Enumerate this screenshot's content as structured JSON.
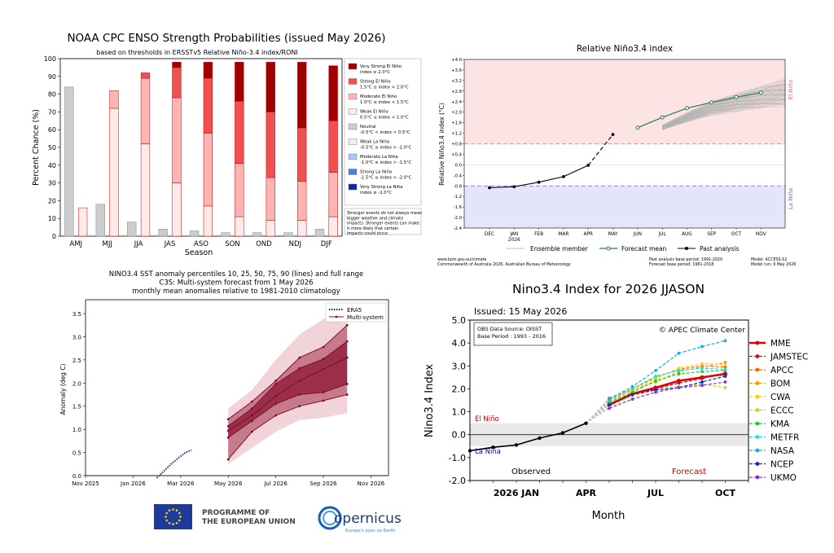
{
  "chart_data": [
    {
      "type": "bar",
      "title": "NOAA CPC ENSO Strength Probabilities (issued May 2026)",
      "subtitle": "based on thresholds in ERSSTv5 Relative Niño-3.4 index/RONI",
      "xlabel": "Season",
      "ylabel": "Percent Chance (%)",
      "ylim": [
        0,
        100
      ],
      "yticks": [
        0,
        10,
        20,
        30,
        40,
        50,
        60,
        70,
        80,
        90,
        100
      ],
      "categories": [
        "AMJ",
        "MJJ",
        "JJA",
        "JAS",
        "ASO",
        "SON",
        "OND",
        "NDJ",
        "DJF"
      ],
      "neutral": [
        84,
        18,
        8,
        4,
        3,
        2,
        2,
        2,
        4
      ],
      "warm_stack": [
        {
          "name": "Weak El Niño\n0.5°C ≤ index < 1.0°C",
          "color": "#ffe9e9",
          "values": [
            16,
            72,
            52,
            30,
            17,
            11,
            9,
            9,
            11
          ]
        },
        {
          "name": "Moderate El Niño\n1.0°C ≤ index < 1.5°C",
          "color": "#ffb3b3",
          "values": [
            0,
            10,
            37,
            48,
            41,
            30,
            24,
            22,
            25
          ]
        },
        {
          "name": "Strong El Niño\n1.5°C ≤ index < 2.0°C",
          "color": "#f05050",
          "values": [
            0,
            0,
            3,
            17,
            31,
            35,
            37,
            30,
            29
          ]
        },
        {
          "name": "Very Strong El Niño\nindex ≥ 2.0°C",
          "color": "#a00000",
          "values": [
            0,
            0,
            0,
            3,
            9,
            22,
            28,
            37,
            31
          ]
        }
      ],
      "neutral_legend": {
        "name": "Neutral\n-0.5°C < index < 0.5°C",
        "color": "#cccccc"
      },
      "cold_legend": [
        {
          "name": "Weak La Niña\n-0.5°C ≥ index > -1.0°C",
          "color": "#e8efff"
        },
        {
          "name": "Moderate La Niña\n-1.0°C ≥ index > -1.5°C",
          "color": "#a9c6ff"
        },
        {
          "name": "Strong La Niña\n-1.5°C ≥ index > -2.0°C",
          "color": "#4a7fe8"
        },
        {
          "name": "Very Strong La Niña\nindex ≤ -2.0°C",
          "color": "#0a2a9a"
        }
      ],
      "note": "Stronger events do not always mean bigger weather and climate impacts. Stronger events can make it more likely that certain impacts could occur."
    },
    {
      "type": "line",
      "title": "Relative Niño3.4 index",
      "ylabel": "Relative Niño3.4 index (°C)",
      "ylim": [
        -2.4,
        4.0
      ],
      "yticks": [
        "+4.0",
        "+3.6",
        "+3.2",
        "+2.8",
        "+2.4",
        "+2.0",
        "+1.6",
        "+1.2",
        "+0.8",
        "+0.4",
        "0.0",
        "-0.4",
        "-0.8",
        "-1.2",
        "-1.6",
        "-2.0",
        "-2.4"
      ],
      "months": [
        "DEC",
        "JAN",
        "FEB",
        "MAR",
        "APR",
        "MAY",
        "JUN",
        "JUL",
        "AUG",
        "SEP",
        "OCT",
        "NOV"
      ],
      "year_label": "2026",
      "el_nino_threshold": 0.8,
      "la_nina_threshold": -0.8,
      "zone_labels": {
        "el_nino": "El Niño",
        "la_nina": "La Niña"
      },
      "past_analysis": [
        -0.87,
        -0.83,
        -0.66,
        -0.45,
        -0.02
      ],
      "forecast_mean": [
        1.15,
        1.41,
        1.8,
        2.15,
        2.37,
        2.57,
        2.74
      ],
      "forecast_start_month_index": 5,
      "legend": [
        "Ensemble member",
        "Forecast mean",
        "Past analysis"
      ],
      "footer_left": [
        "www.bom.gov.au/climate",
        "Commonwealth of Australia 2026, Australian Bureau of Meteorology"
      ],
      "footer_mid": [
        "Past analysis base period: 1991-2020",
        "Forecast base period: 1981-2018"
      ],
      "footer_right": [
        "Model: ACCESS-S2",
        "Model run: 9 May 2026"
      ]
    },
    {
      "type": "line",
      "title_lines": [
        "NINO3.4 SST anomaly percentiles 10, 25, 50, 75, 90 (lines) and full range",
        "C3S: Multi-system forecast from 1 May 2026",
        "monthly mean anomalies relative to 1981-2010 climatology"
      ],
      "ylabel": "Anomaly (deg C)",
      "ylim": [
        0.0,
        3.8
      ],
      "yticks": [
        "0.0",
        "0.5",
        "1.0",
        "1.5",
        "2.0",
        "2.5",
        "3.0",
        "3.5"
      ],
      "xticks": [
        "Nov 2025",
        "Jan 2026",
        "Mar 2026",
        "May 2026",
        "Jul 2026",
        "Sep 2026",
        "Nov 2026"
      ],
      "era5": [
        [
          3.0,
          -0.05
        ],
        [
          3.3,
          0.1
        ],
        [
          3.6,
          0.25
        ],
        [
          3.9,
          0.38
        ],
        [
          4.2,
          0.5
        ],
        [
          4.45,
          0.55
        ]
      ],
      "forecast_months": [
        6,
        7,
        8,
        9,
        10,
        11
      ],
      "p10": [
        0.35,
        0.95,
        1.3,
        1.5,
        1.62,
        1.75
      ],
      "p25": [
        0.82,
        1.18,
        1.55,
        1.75,
        1.8,
        1.98
      ],
      "p50": [
        0.97,
        1.3,
        1.72,
        2.05,
        2.3,
        2.55
      ],
      "p75": [
        1.07,
        1.45,
        1.98,
        2.32,
        2.52,
        2.9
      ],
      "p90": [
        1.22,
        1.6,
        2.05,
        2.55,
        2.78,
        3.25
      ],
      "range_min": [
        0.25,
        0.6,
        0.95,
        1.2,
        1.25,
        1.35
      ],
      "range_max": [
        1.45,
        1.85,
        2.5,
        3.05,
        3.38,
        3.72
      ],
      "legend": [
        "ERA5",
        "Multi-system"
      ],
      "logo_text": [
        "PROGRAMME OF",
        "THE EUROPEAN UNION"
      ],
      "copernicus": "opernicus",
      "copernicus_tag": "Europe's eyes on Earth"
    },
    {
      "type": "line",
      "title": "Nino3.4 Index for 2026 JJASON",
      "issued": "Issued: 15 May 2026",
      "info_lines": [
        "OBS Data Source: OISST",
        "Base Period : 1993 - 2016"
      ],
      "credit": "© APEC Climate Center",
      "ylabel": "Nino3.4 Index",
      "xlabel": "Month",
      "ylim": [
        -2.0,
        5.0
      ],
      "yticks": [
        "5.0",
        "4.0",
        "3.0",
        "2.0",
        "1.0",
        "0.0",
        "-1.0",
        "-2.0"
      ],
      "xticks": [
        "2026 JAN",
        "APR",
        "JUL",
        "OCT"
      ],
      "zone_labels": {
        "el_nino": "El Niño",
        "la_nina": "La Niña"
      },
      "phase_labels": {
        "observed": "Observed",
        "forecast": "Forecast"
      },
      "observed": [
        -0.7,
        -0.55,
        -0.45,
        -0.15,
        0.08,
        0.5
      ],
      "models": [
        {
          "name": "MME",
          "color": "#e00000",
          "values": [
            1.3,
            1.78,
            2.05,
            2.35,
            2.5,
            2.65
          ]
        },
        {
          "name": "JAMSTEC",
          "color": "#c81010",
          "values": [
            1.35,
            1.75,
            2.0,
            2.25,
            2.45,
            2.7
          ]
        },
        {
          "name": "APCC",
          "color": "#ff6600",
          "values": [
            1.6,
            2.0,
            2.5,
            2.85,
            3.0,
            2.95
          ]
        },
        {
          "name": "BOM",
          "color": "#ff9900",
          "values": [
            1.45,
            1.95,
            2.3,
            2.75,
            2.95,
            3.15
          ]
        },
        {
          "name": "CWA",
          "color": "#ffd000",
          "values": [
            1.55,
            1.9,
            2.45,
            2.9,
            3.1,
            3.05
          ]
        },
        {
          "name": "ECCC",
          "color": "#c0e000",
          "values": [
            1.2,
            1.7,
            1.95,
            2.1,
            2.2,
            2.05
          ]
        },
        {
          "name": "KMA",
          "color": "#20d020",
          "values": [
            1.4,
            1.85,
            2.35,
            2.65,
            2.75,
            2.8
          ]
        },
        {
          "name": "METFR",
          "color": "#20e0e0",
          "values": [
            1.5,
            2.0,
            2.55,
            2.8,
            2.9,
            2.85
          ]
        },
        {
          "name": "NASA",
          "color": "#10b0e0",
          "values": [
            1.55,
            2.1,
            2.8,
            3.55,
            3.85,
            4.1
          ]
        },
        {
          "name": "NCEP",
          "color": "#1020e0",
          "values": [
            1.3,
            1.75,
            1.95,
            2.05,
            2.3,
            2.55
          ]
        },
        {
          "name": "UKMO",
          "color": "#9030e0",
          "values": [
            1.15,
            1.55,
            1.85,
            2.05,
            2.15,
            2.3
          ]
        }
      ]
    }
  ]
}
